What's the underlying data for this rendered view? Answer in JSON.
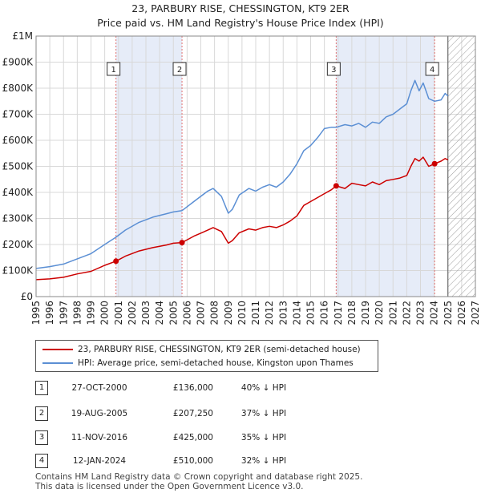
{
  "title_line1": "23, PARBURY RISE, CHESSINGTON, KT9 2ER",
  "title_line2": "Price paid vs. HM Land Registry's House Price Index (HPI)",
  "chart_data": {
    "type": "line",
    "xlim": [
      1995,
      2027
    ],
    "ylim": [
      0,
      1000000
    ],
    "x_ticks": [
      1995,
      1996,
      1997,
      1998,
      1999,
      2000,
      2001,
      2002,
      2003,
      2004,
      2005,
      2006,
      2007,
      2008,
      2009,
      2010,
      2011,
      2012,
      2013,
      2014,
      2015,
      2016,
      2017,
      2018,
      2019,
      2020,
      2021,
      2022,
      2023,
      2024,
      2025,
      2026,
      2027
    ],
    "y_ticks": [
      0,
      100000,
      200000,
      300000,
      400000,
      500000,
      600000,
      700000,
      800000,
      900000,
      1000000
    ],
    "y_tick_labels": [
      "£0",
      "£100K",
      "£200K",
      "£300K",
      "£400K",
      "£500K",
      "£600K",
      "£700K",
      "£800K",
      "£900K",
      "£1M"
    ],
    "grid": true,
    "shaded_periods": [
      [
        2000.82,
        2005.63
      ],
      [
        2016.86,
        2024.03
      ]
    ],
    "hatched_future_start": 2025.0,
    "series": [
      {
        "name": "23, PARBURY RISE, CHESSINGTON, KT9 2ER (semi-detached house)",
        "color": "#cc0000",
        "x": [
          1995.0,
          1996.0,
          1997.0,
          1998.0,
          1999.0,
          2000.0,
          2000.82,
          2001.5,
          2002.5,
          2003.5,
          2004.5,
          2005.0,
          2005.63,
          2006.5,
          2007.5,
          2007.9,
          2008.5,
          2009.0,
          2009.3,
          2009.8,
          2010.5,
          2011.0,
          2011.5,
          2012.0,
          2012.5,
          2013.0,
          2013.5,
          2014.0,
          2014.5,
          2015.0,
          2015.5,
          2016.0,
          2016.5,
          2016.86,
          2017.5,
          2018.0,
          2018.5,
          2019.0,
          2019.5,
          2020.0,
          2020.5,
          2021.0,
          2021.5,
          2022.0,
          2022.3,
          2022.6,
          2022.9,
          2023.2,
          2023.6,
          2024.03,
          2024.5,
          2024.8,
          2025.0
        ],
        "values": [
          65000,
          68000,
          74000,
          87000,
          97000,
          120000,
          136000,
          155000,
          175000,
          188000,
          198000,
          205000,
          207250,
          232000,
          255000,
          265000,
          250000,
          205000,
          215000,
          245000,
          260000,
          255000,
          265000,
          270000,
          265000,
          275000,
          290000,
          310000,
          350000,
          365000,
          380000,
          395000,
          410000,
          425000,
          415000,
          435000,
          430000,
          425000,
          440000,
          430000,
          445000,
          450000,
          455000,
          465000,
          500000,
          530000,
          520000,
          535000,
          500000,
          510000,
          520000,
          530000,
          525000
        ]
      },
      {
        "name": "HPI: Average price, semi-detached house, Kingston upon Thames",
        "color": "#5b8fd4",
        "x": [
          1995.0,
          1996.0,
          1997.0,
          1998.0,
          1999.0,
          2000.0,
          2000.82,
          2001.5,
          2002.5,
          2003.5,
          2004.5,
          2005.0,
          2005.63,
          2006.5,
          2007.5,
          2007.9,
          2008.5,
          2009.0,
          2009.3,
          2009.8,
          2010.5,
          2011.0,
          2011.5,
          2012.0,
          2012.5,
          2013.0,
          2013.5,
          2014.0,
          2014.5,
          2015.0,
          2015.5,
          2016.0,
          2016.5,
          2016.86,
          2017.5,
          2018.0,
          2018.5,
          2019.0,
          2019.5,
          2020.0,
          2020.5,
          2021.0,
          2021.5,
          2022.0,
          2022.3,
          2022.6,
          2022.9,
          2023.2,
          2023.6,
          2024.03,
          2024.5,
          2024.8,
          2025.0
        ],
        "values": [
          108000,
          115000,
          125000,
          145000,
          165000,
          200000,
          228000,
          255000,
          285000,
          305000,
          318000,
          325000,
          330000,
          365000,
          405000,
          415000,
          385000,
          320000,
          335000,
          390000,
          415000,
          405000,
          420000,
          430000,
          420000,
          440000,
          470000,
          510000,
          560000,
          580000,
          610000,
          645000,
          650000,
          650000,
          660000,
          655000,
          665000,
          650000,
          670000,
          665000,
          690000,
          700000,
          720000,
          740000,
          790000,
          830000,
          790000,
          820000,
          760000,
          750000,
          755000,
          780000,
          770000
        ]
      }
    ],
    "transactions": [
      {
        "num": "1",
        "x": 2000.82,
        "value": 136000
      },
      {
        "num": "2",
        "x": 2005.63,
        "value": 207250
      },
      {
        "num": "3",
        "x": 2016.86,
        "value": 425000
      },
      {
        "num": "4",
        "x": 2024.03,
        "value": 510000
      }
    ]
  },
  "legend": {
    "red_label": "23, PARBURY RISE, CHESSINGTON, KT9 2ER (semi-detached house)",
    "blue_label": "HPI: Average price, semi-detached house, Kingston upon Thames"
  },
  "transactions": [
    {
      "num": "1",
      "date": "27-OCT-2000",
      "price": "£136,000",
      "hpi": "40% ↓ HPI"
    },
    {
      "num": "2",
      "date": "19-AUG-2005",
      "price": "£207,250",
      "hpi": "37% ↓ HPI"
    },
    {
      "num": "3",
      "date": "11-NOV-2016",
      "price": "£425,000",
      "hpi": "35% ↓ HPI"
    },
    {
      "num": "4",
      "date": "12-JAN-2024",
      "price": "£510,000",
      "hpi": "32% ↓ HPI"
    }
  ],
  "footer": {
    "line1": "Contains HM Land Registry data © Crown copyright and database right 2025.",
    "line2": "This data is licensed under the Open Government Licence v3.0."
  }
}
